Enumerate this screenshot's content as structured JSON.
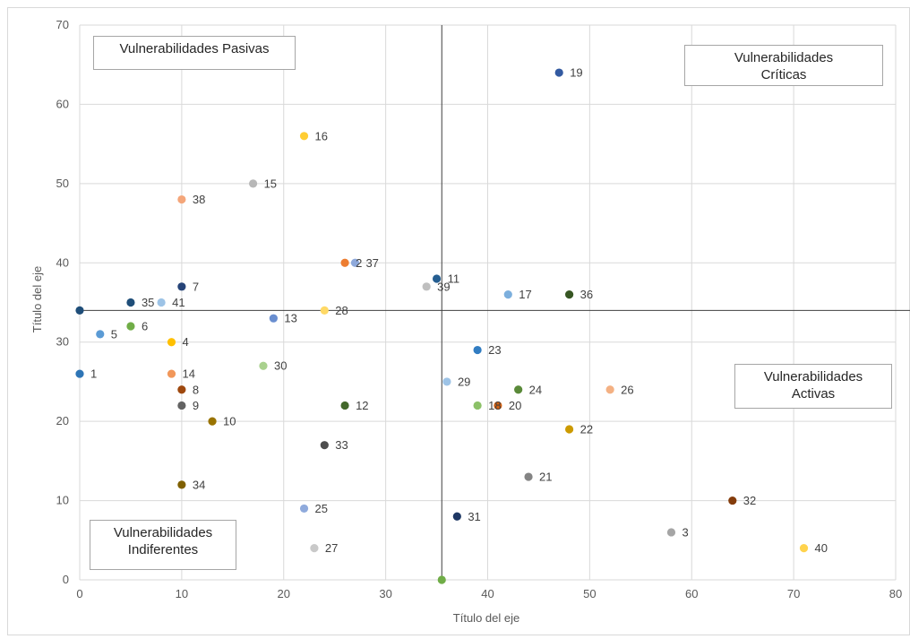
{
  "chart_data": {
    "type": "scatter",
    "title": "",
    "xlabel": "Título del eje",
    "ylabel": "Título del eje",
    "xlim": [
      0,
      80
    ],
    "ylim": [
      0,
      70
    ],
    "x_ticks": [
      0,
      10,
      20,
      30,
      40,
      50,
      60,
      70,
      80
    ],
    "y_ticks": [
      0,
      10,
      20,
      30,
      40,
      50,
      60,
      70
    ],
    "grid": true,
    "reference_lines": {
      "x": 35.5,
      "y": 34
    },
    "quadrants": {
      "top_left": {
        "line1": "Vulnerabilidades Pasivas",
        "line2": ""
      },
      "top_right": {
        "line1": "Vulnerabilidades",
        "line2": "Críticas"
      },
      "bottom_right": {
        "line1": "Vulnerabilidades",
        "line2": "Activas"
      },
      "bottom_left": {
        "line1": "Vulnerabilidades",
        "line2": "Indiferentes"
      }
    },
    "points": [
      {
        "label": "1",
        "x": 0,
        "y": 26,
        "color": "#2e75b6"
      },
      {
        "label": "2",
        "x": 26,
        "y": 40,
        "color": "#ed7d31"
      },
      {
        "label": "3",
        "x": 58,
        "y": 6,
        "color": "#a5a5a5"
      },
      {
        "label": "4",
        "x": 9,
        "y": 30,
        "color": "#ffc000"
      },
      {
        "label": "5",
        "x": 2,
        "y": 31,
        "color": "#5b9bd5"
      },
      {
        "label": "6",
        "x": 5,
        "y": 32,
        "color": "#70ad47"
      },
      {
        "label": "7",
        "x": 10,
        "y": 37,
        "color": "#264478"
      },
      {
        "label": "8",
        "x": 10,
        "y": 24,
        "color": "#9e480e"
      },
      {
        "label": "9",
        "x": 10,
        "y": 22,
        "color": "#636363"
      },
      {
        "label": "10",
        "x": 13,
        "y": 20,
        "color": "#997300"
      },
      {
        "label": "11",
        "x": 35,
        "y": 38,
        "color": "#255e91"
      },
      {
        "label": "12",
        "x": 26,
        "y": 22,
        "color": "#43682b"
      },
      {
        "label": "13",
        "x": 19,
        "y": 33,
        "color": "#698ed0"
      },
      {
        "label": "14",
        "x": 9,
        "y": 26,
        "color": "#f1975a"
      },
      {
        "label": "15",
        "x": 17,
        "y": 50,
        "color": "#b7b7b7"
      },
      {
        "label": "16",
        "x": 22,
        "y": 56,
        "color": "#ffcd33"
      },
      {
        "label": "17",
        "x": 42,
        "y": 36,
        "color": "#7cafdd"
      },
      {
        "label": "18",
        "x": 39,
        "y": 22,
        "color": "#8cc168"
      },
      {
        "label": "19",
        "x": 47,
        "y": 64,
        "color": "#335aa1"
      },
      {
        "label": "20",
        "x": 41,
        "y": 22,
        "color": "#d26012"
      },
      {
        "label": "21",
        "x": 44,
        "y": 13,
        "color": "#848484"
      },
      {
        "label": "22",
        "x": 48,
        "y": 19,
        "color": "#cc9a00"
      },
      {
        "label": "23",
        "x": 39,
        "y": 29,
        "color": "#327dc2"
      },
      {
        "label": "24",
        "x": 43,
        "y": 24,
        "color": "#5a8a39"
      },
      {
        "label": "25",
        "x": 22,
        "y": 9,
        "color": "#8faadc"
      },
      {
        "label": "26",
        "x": 52,
        "y": 24,
        "color": "#f4b183"
      },
      {
        "label": "27",
        "x": 23,
        "y": 4,
        "color": "#c9c9c9"
      },
      {
        "label": "28",
        "x": 24,
        "y": 34,
        "color": "#ffd966"
      },
      {
        "label": "29",
        "x": 36,
        "y": 25,
        "color": "#9dc3e6"
      },
      {
        "label": "30",
        "x": 18,
        "y": 27,
        "color": "#a9d18e"
      },
      {
        "label": "31",
        "x": 37,
        "y": 8,
        "color": "#1f3864"
      },
      {
        "label": "32",
        "x": 64,
        "y": 10,
        "color": "#843c0c"
      },
      {
        "label": "33",
        "x": 24,
        "y": 17,
        "color": "#4d4d4d"
      },
      {
        "label": "34",
        "x": 10,
        "y": 12,
        "color": "#7f6000"
      },
      {
        "label": "35",
        "x": 5,
        "y": 35,
        "color": "#1f4e79"
      },
      {
        "label": "36",
        "x": 48,
        "y": 36,
        "color": "#375623"
      },
      {
        "label": "37",
        "x": 27,
        "y": 40,
        "color": "#8ea9db"
      },
      {
        "label": "38",
        "x": 10,
        "y": 48,
        "color": "#f4a67a"
      },
      {
        "label": "39",
        "x": 34,
        "y": 37,
        "color": "#bfbfbf"
      },
      {
        "label": "40",
        "x": 71,
        "y": 4,
        "color": "#ffd34d"
      },
      {
        "label": "41",
        "x": 8,
        "y": 35,
        "color": "#9dc3e6"
      },
      {
        "label": "",
        "x": 0,
        "y": 34,
        "color": "#1f4e79"
      },
      {
        "label": "",
        "x": 35.5,
        "y": 0,
        "color": "#70ad47"
      }
    ]
  }
}
